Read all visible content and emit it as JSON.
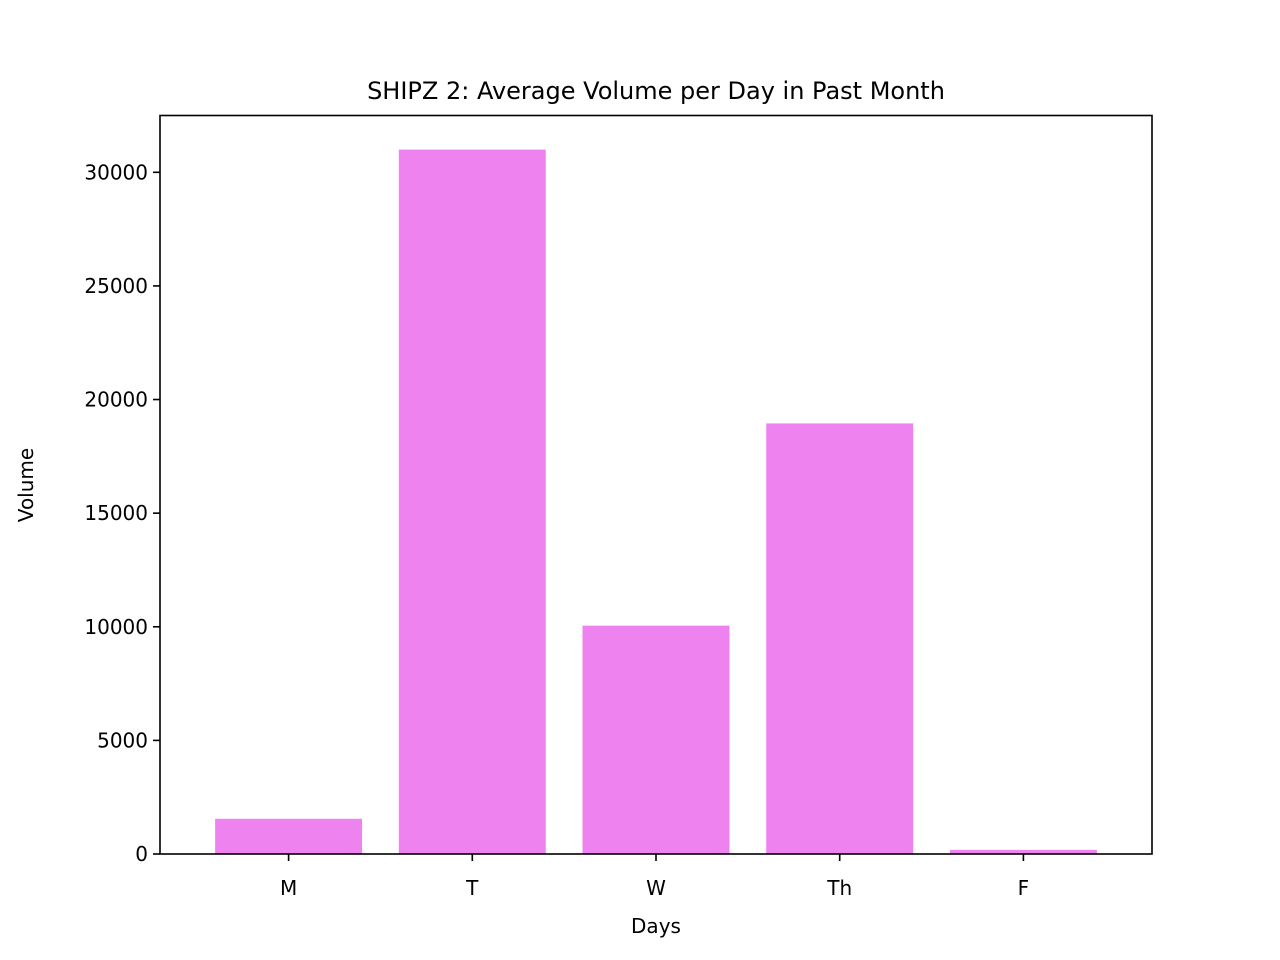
{
  "chart_data": {
    "type": "bar",
    "title": "SHIPZ 2: Average Volume per Day in Past Month",
    "xlabel": "Days",
    "ylabel": "Volume",
    "categories": [
      "M",
      "T",
      "W",
      "Th",
      "F"
    ],
    "values": [
      1550,
      31000,
      10050,
      18950,
      180
    ],
    "ylim": [
      0,
      32500
    ],
    "yticks": [
      0,
      5000,
      10000,
      15000,
      20000,
      25000,
      30000
    ],
    "bar_color": "#ee82ee",
    "grid": false,
    "legend": "none"
  }
}
